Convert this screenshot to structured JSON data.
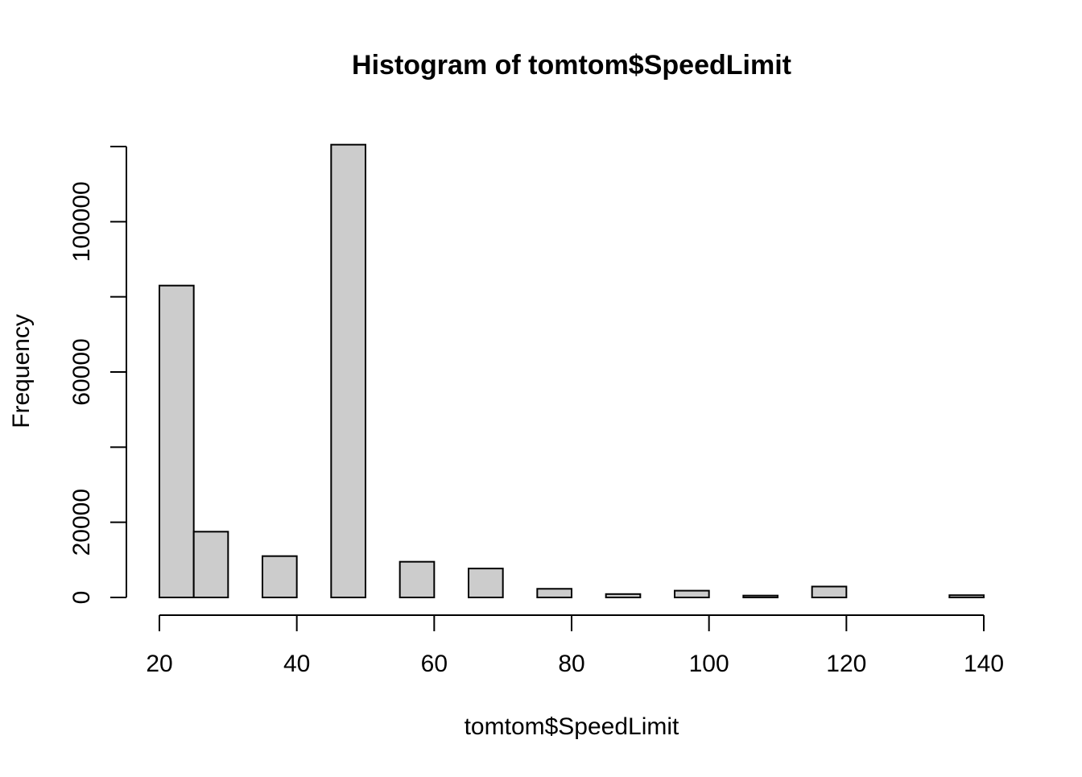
{
  "chart_data": {
    "type": "bar",
    "title": "Histogram of tomtom$SpeedLimit",
    "xlabel": "tomtom$SpeedLimit",
    "ylabel": "Frequency",
    "xlim": [
      20,
      140
    ],
    "ylim": [
      0,
      120000
    ],
    "grid": false,
    "bar_color": "#cccccc",
    "bar_edge_color": "#000000",
    "x_ticks": [
      20,
      40,
      60,
      80,
      100,
      120,
      140
    ],
    "x_tick_labels": [
      "20",
      "40",
      "60",
      "80",
      "100",
      "120",
      "140"
    ],
    "y_ticks": [
      0,
      20000,
      40000,
      60000,
      80000,
      100000,
      120000
    ],
    "y_tick_labels": [
      "0",
      "20000",
      "",
      "60000",
      "",
      "100000",
      ""
    ],
    "bins": [
      {
        "x0": 20,
        "x1": 25,
        "count": 83000
      },
      {
        "x0": 25,
        "x1": 30,
        "count": 17500
      },
      {
        "x0": 30,
        "x1": 35,
        "count": 0
      },
      {
        "x0": 35,
        "x1": 40,
        "count": 11000
      },
      {
        "x0": 40,
        "x1": 45,
        "count": 0
      },
      {
        "x0": 45,
        "x1": 50,
        "count": 120500
      },
      {
        "x0": 50,
        "x1": 55,
        "count": 0
      },
      {
        "x0": 55,
        "x1": 60,
        "count": 9500
      },
      {
        "x0": 60,
        "x1": 65,
        "count": 0
      },
      {
        "x0": 65,
        "x1": 70,
        "count": 7700
      },
      {
        "x0": 70,
        "x1": 75,
        "count": 0
      },
      {
        "x0": 75,
        "x1": 80,
        "count": 2300
      },
      {
        "x0": 80,
        "x1": 85,
        "count": 0
      },
      {
        "x0": 85,
        "x1": 90,
        "count": 900
      },
      {
        "x0": 90,
        "x1": 95,
        "count": 0
      },
      {
        "x0": 95,
        "x1": 100,
        "count": 1800
      },
      {
        "x0": 100,
        "x1": 105,
        "count": 0
      },
      {
        "x0": 105,
        "x1": 110,
        "count": 500
      },
      {
        "x0": 110,
        "x1": 115,
        "count": 0
      },
      {
        "x0": 115,
        "x1": 120,
        "count": 2900
      },
      {
        "x0": 120,
        "x1": 125,
        "count": 0
      },
      {
        "x0": 125,
        "x1": 130,
        "count": 0
      },
      {
        "x0": 130,
        "x1": 135,
        "count": 0
      },
      {
        "x0": 135,
        "x1": 140,
        "count": 600
      }
    ]
  }
}
